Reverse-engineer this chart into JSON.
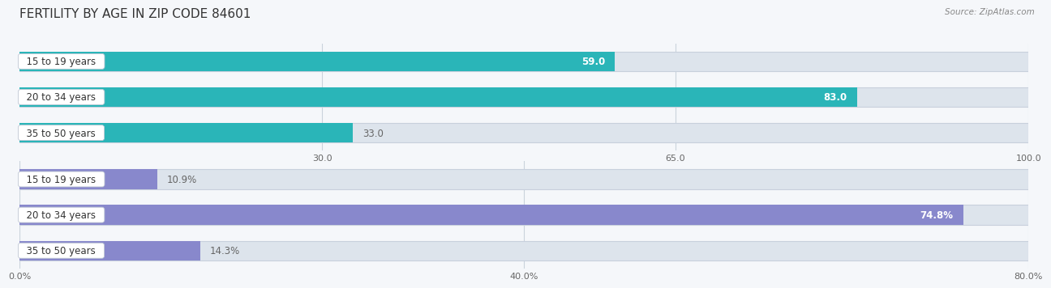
{
  "title": "FERTILITY BY AGE IN ZIP CODE 84601",
  "source": "Source: ZipAtlas.com",
  "top_bars": {
    "categories": [
      "15 to 19 years",
      "20 to 34 years",
      "35 to 50 years"
    ],
    "values": [
      59.0,
      83.0,
      33.0
    ],
    "xlim": [
      0,
      100
    ],
    "xticks": [
      30.0,
      65.0,
      100.0
    ],
    "bar_color": "#2ab5b8",
    "bar_bg": "#dde4ec",
    "label_inside_color": "#ffffff",
    "label_outside_color": "#666666",
    "value_labels": [
      "59.0",
      "83.0",
      "33.0"
    ],
    "label_inside": [
      true,
      true,
      false
    ]
  },
  "bottom_bars": {
    "categories": [
      "15 to 19 years",
      "20 to 34 years",
      "35 to 50 years"
    ],
    "values": [
      10.9,
      74.8,
      14.3
    ],
    "xlim": [
      0,
      80
    ],
    "xticks": [
      0.0,
      40.0,
      80.0
    ],
    "bar_color": "#8888cc",
    "bar_bg": "#dde4ec",
    "label_inside_color": "#ffffff",
    "label_outside_color": "#666666",
    "value_labels": [
      "10.9%",
      "74.8%",
      "14.3%"
    ],
    "label_inside": [
      false,
      true,
      false
    ]
  },
  "label_fontsize": 8.5,
  "tick_fontsize": 8,
  "title_fontsize": 11,
  "source_fontsize": 7.5,
  "category_fontsize": 8.5,
  "bar_height": 0.55,
  "fig_bg": "#f5f7fa"
}
